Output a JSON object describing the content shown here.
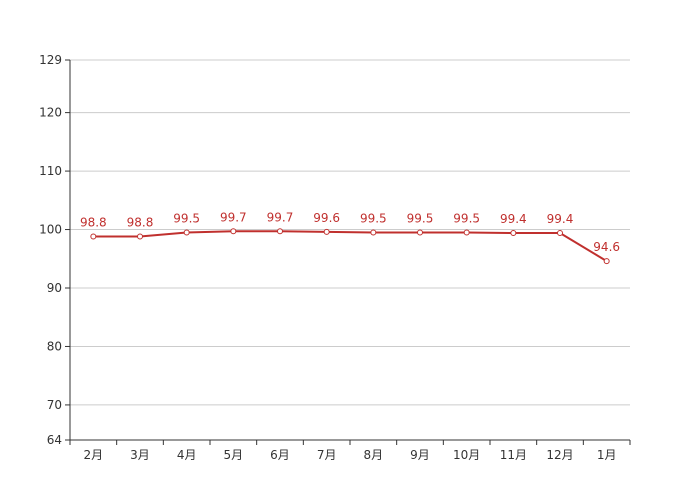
{
  "chart_data": {
    "type": "line",
    "title": "",
    "xlabel": "",
    "ylabel": "",
    "categories": [
      "2月",
      "3月",
      "4月",
      "5月",
      "6月",
      "7月",
      "8月",
      "9月",
      "10月",
      "11月",
      "12月",
      "1月"
    ],
    "series": [
      {
        "values": [
          98.8,
          98.8,
          99.5,
          99.7,
          99.7,
          99.6,
          99.5,
          99.5,
          99.5,
          99.4,
          99.4,
          94.6
        ],
        "labels": [
          "98.8",
          "98.8",
          "99.5",
          "99.7",
          "99.7",
          "99.6",
          "99.5",
          "99.5",
          "99.5",
          "99.4",
          "99.4",
          "94.6"
        ],
        "color": "#c0302e"
      }
    ],
    "ylim": [
      64,
      129
    ],
    "yticks": [
      64,
      70,
      80,
      90,
      100,
      110,
      120,
      129
    ],
    "ytick_labels": [
      "64",
      "70",
      "80",
      "90",
      "100",
      "110",
      "120",
      "129"
    ],
    "grid": true,
    "legend": "none"
  },
  "colors": {
    "line": "#c0302e",
    "grid": "#cccccc",
    "axis": "#333333"
  }
}
